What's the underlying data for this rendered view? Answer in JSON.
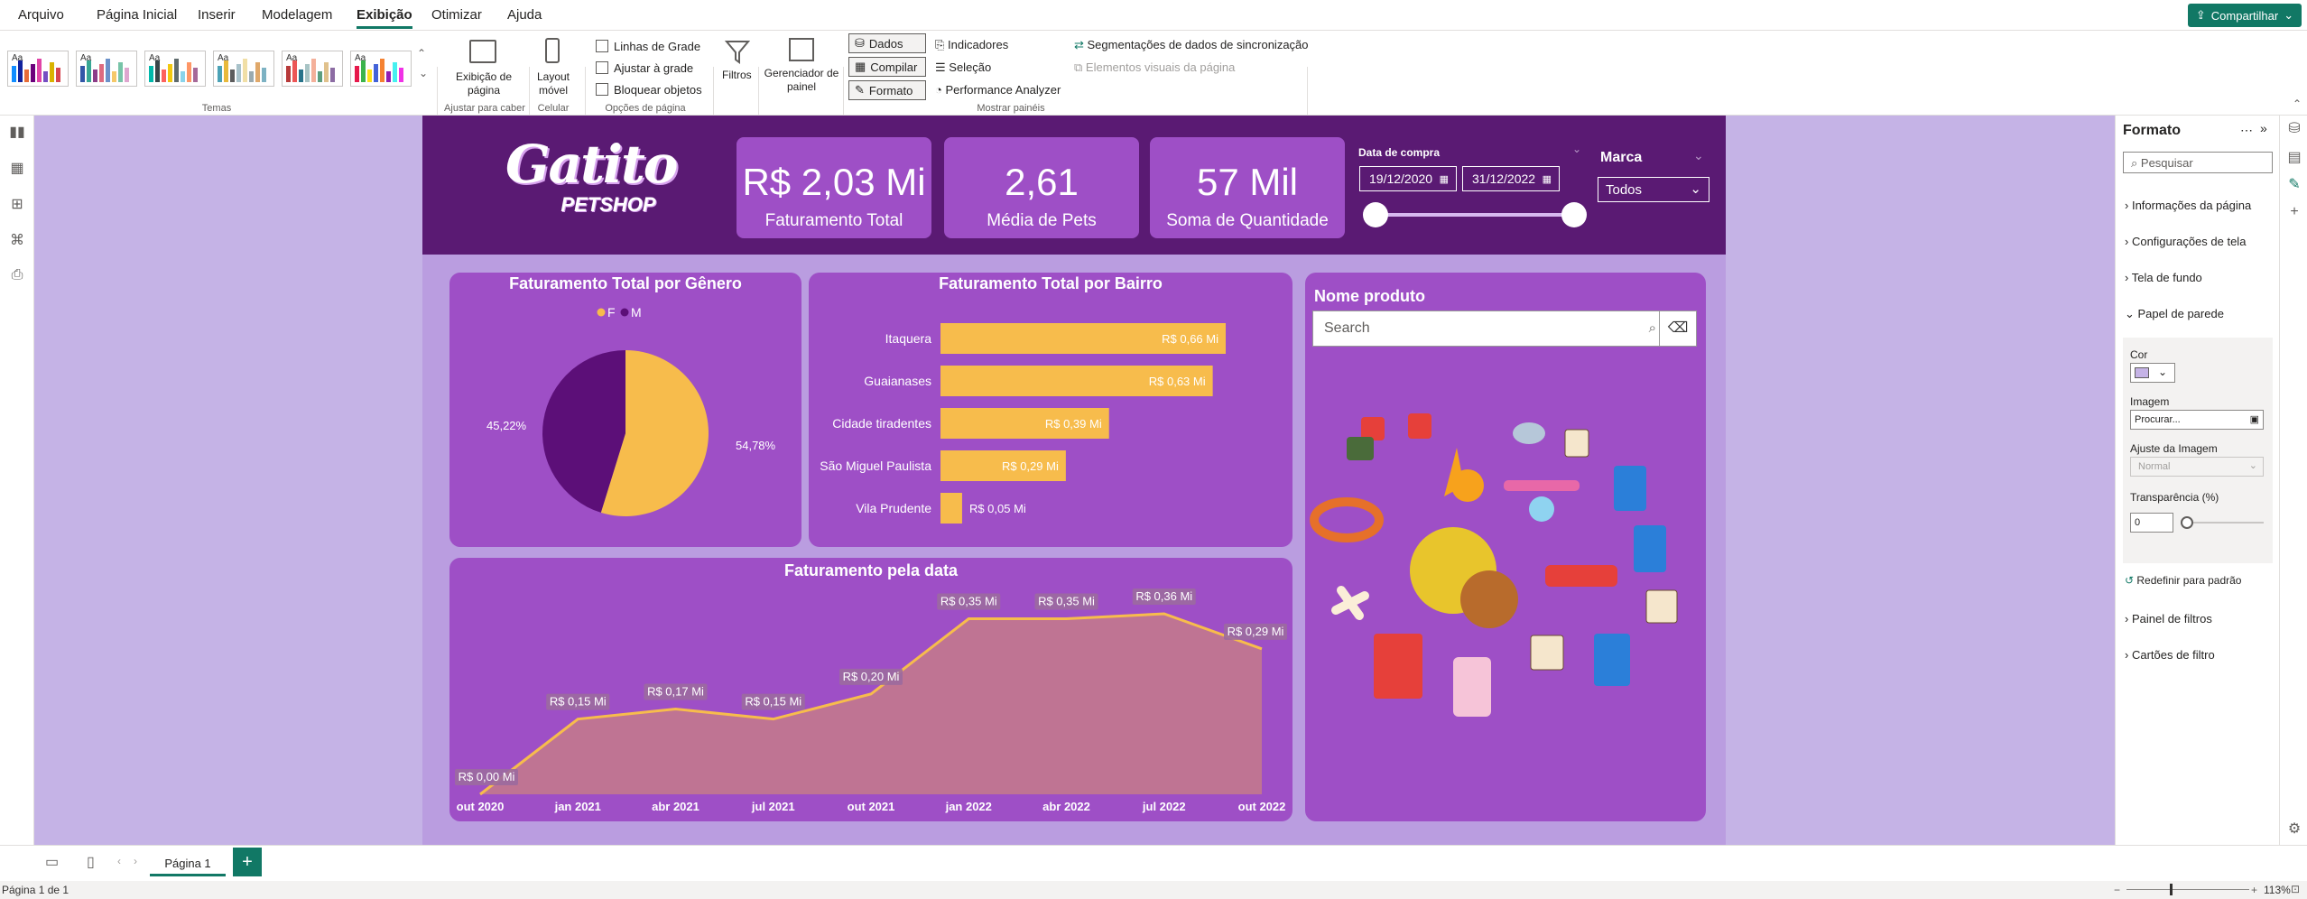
{
  "menu": {
    "items": [
      "Arquivo",
      "Página Inicial",
      "Inserir",
      "Modelagem",
      "Exibição",
      "Otimizar",
      "Ajuda"
    ],
    "active": "Exibição",
    "share_label": "Compartilhar"
  },
  "ribbon": {
    "groups": {
      "temas": "Temas",
      "ajustar": "Ajustar para caber",
      "celular": "Celular",
      "opcoes": "Opções de página",
      "mostrar": "Mostrar painéis"
    },
    "page_view": "Exibição de\npágina",
    "layout_movel": "Layout\nmóvel",
    "linhas_grade": "Linhas de Grade",
    "ajustar_grade": "Ajustar à grade",
    "bloquear": "Bloquear objetos",
    "filtros": "Filtros",
    "gerenciador": "Gerenciador de\npainel",
    "dados": "Dados",
    "compilar": "Compilar",
    "formato": "Formato",
    "indicadores": "Indicadores",
    "selecao": "Seleção",
    "performance": "Performance Analyzer",
    "segmentacoes": "Segmentações de dados de sincronização",
    "elementos": "Elementos visuais da página",
    "theme_label": "Aa"
  },
  "report": {
    "logo_main": "Gatito",
    "logo_sub": "PETSHOP",
    "kpis": [
      {
        "value": "R$ 2,03 Mi",
        "label": "Faturamento Total"
      },
      {
        "value": "2,61",
        "label": "Média de Pets"
      },
      {
        "value": "57 Mil",
        "label": "Soma de Quantidade"
      }
    ],
    "date_slicer": {
      "title": "Data de compra",
      "start": "19/12/2020",
      "end": "31/12/2022"
    },
    "brand_slicer": {
      "title": "Marca",
      "value": "Todos"
    },
    "product_search": {
      "title": "Nome produto",
      "placeholder": "Search"
    }
  },
  "chart_data": [
    {
      "type": "pie",
      "title": "Faturamento Total por Gênero",
      "legend": [
        "F",
        "M"
      ],
      "values": [
        54.78,
        45.22
      ],
      "labels": [
        "54,78%",
        "45,22%"
      ],
      "colors": [
        "#f7bc4c",
        "#5c0f78"
      ],
      "legend_position": "top-center"
    },
    {
      "type": "bar",
      "orientation": "horizontal",
      "title": "Faturamento Total por Bairro",
      "categories": [
        "Itaquera",
        "Guaianases",
        "Cidade tiradentes",
        "São Miguel Paulista",
        "Vila Prudente"
      ],
      "values": [
        0.66,
        0.63,
        0.39,
        0.29,
        0.05
      ],
      "data_labels": [
        "R$ 0,66 Mi",
        "R$ 0,63 Mi",
        "R$ 0,39 Mi",
        "R$ 0,29 Mi",
        "R$ 0,05 Mi"
      ],
      "color": "#f7bc4c",
      "xlim": [
        0,
        0.66
      ]
    },
    {
      "type": "area",
      "title": "Faturamento pela data",
      "x": [
        "out 2020",
        "jan 2021",
        "abr 2021",
        "jul 2021",
        "out 2021",
        "jan 2022",
        "abr 2022",
        "jul 2022",
        "out 2022"
      ],
      "x_ticks": [
        "out 2020",
        "jan 2021",
        "abr 2021",
        "jul 2021",
        "out 2021",
        "jan 2022",
        "abr 2022",
        "jul 2022",
        "out 2022"
      ],
      "values": [
        0.0,
        0.15,
        0.17,
        0.15,
        0.2,
        0.35,
        0.35,
        0.36,
        0.29
      ],
      "data_labels": [
        "R$ 0,00 Mi",
        "R$ 0,15 Mi",
        "R$ 0,17 Mi",
        "R$ 0,15 Mi",
        "R$ 0,20 Mi",
        "R$ 0,35 Mi",
        "R$ 0,35 Mi",
        "R$ 0,36 Mi",
        "R$ 0,29 Mi"
      ],
      "line_color": "#f7bc4c",
      "fill_color": "#c47a8a",
      "ylim": [
        0,
        0.36
      ]
    }
  ],
  "format_pane": {
    "title": "Formato",
    "search_placeholder": "Pesquisar",
    "sections": [
      "Informações da página",
      "Configurações de tela",
      "Tela de fundo",
      "Papel de parede"
    ],
    "cor": "Cor",
    "imagem": "Imagem",
    "procurar": "Procurar...",
    "ajuste": "Ajuste da Imagem",
    "ajuste_val": "Normal",
    "transparencia": "Transparência (%)",
    "transp_val": "0",
    "redefinir": "Redefinir para padrão",
    "sections2": [
      "Painel de filtros",
      "Cartões de filtro"
    ],
    "swatch_color": "#c5b3e6"
  },
  "tabs": {
    "page1": "Página 1"
  },
  "status": {
    "left": "Página 1 de 1",
    "zoom": "113%"
  }
}
